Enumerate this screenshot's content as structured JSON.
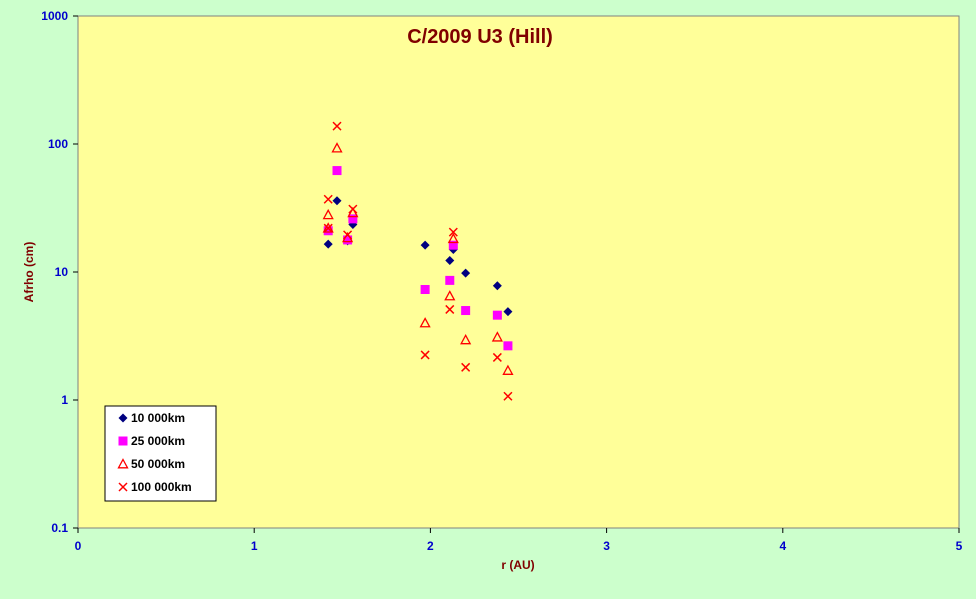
{
  "colors": {
    "page_background": "#ccffcc",
    "plot_background": "#ffff99",
    "title": "#800000",
    "axis_title": "#800000",
    "tick_labels": "#0000cc"
  },
  "chart_data": {
    "type": "scatter",
    "title": "C/2009 U3 (Hill)",
    "xlabel": "r (AU)",
    "ylabel": "Afrho (cm)",
    "xlim": [
      0,
      5
    ],
    "ylim": [
      0.1,
      1000
    ],
    "yscale": "log",
    "grid": false,
    "legend_position": "bottom-left",
    "x_ticks": [
      "0",
      "1",
      "2",
      "3",
      "4",
      "5"
    ],
    "y_ticks": [
      "0.1",
      "1",
      "10",
      "100",
      "1000"
    ],
    "series": [
      {
        "name": "10 000km",
        "marker": "diamond",
        "color": "#000080",
        "points": [
          [
            1.42,
            16.5
          ],
          [
            1.47,
            36
          ],
          [
            1.53,
            17.5
          ],
          [
            1.56,
            23.5
          ],
          [
            1.97,
            16.2
          ],
          [
            2.11,
            12.3
          ],
          [
            2.13,
            15
          ],
          [
            2.2,
            9.8
          ],
          [
            2.38,
            7.8
          ],
          [
            2.44,
            4.9
          ]
        ]
      },
      {
        "name": "25 000km",
        "marker": "square",
        "color": "#ff00ff",
        "points": [
          [
            1.42,
            21
          ],
          [
            1.47,
            62
          ],
          [
            1.53,
            17.8
          ],
          [
            1.56,
            26
          ],
          [
            1.97,
            7.3
          ],
          [
            2.11,
            8.6
          ],
          [
            2.13,
            16.2
          ],
          [
            2.2,
            5.0
          ],
          [
            2.38,
            4.6
          ],
          [
            2.44,
            2.65
          ]
        ]
      },
      {
        "name": "50 000km",
        "marker": "triangle",
        "color": "#ff0000",
        "points": [
          [
            1.42,
            28
          ],
          [
            1.42,
            22
          ],
          [
            1.47,
            93
          ],
          [
            1.53,
            18.5
          ],
          [
            1.56,
            29
          ],
          [
            1.97,
            4.0
          ],
          [
            2.11,
            6.5
          ],
          [
            2.13,
            18.2
          ],
          [
            2.2,
            2.95
          ],
          [
            2.38,
            3.1
          ],
          [
            2.44,
            1.7
          ]
        ]
      },
      {
        "name": "100 000km",
        "marker": "x",
        "color": "#ff0000",
        "points": [
          [
            1.42,
            37
          ],
          [
            1.42,
            22
          ],
          [
            1.47,
            138
          ],
          [
            1.53,
            19.5
          ],
          [
            1.56,
            31
          ],
          [
            1.97,
            2.25
          ],
          [
            2.11,
            5.1
          ],
          [
            2.13,
            20.5
          ],
          [
            2.2,
            1.8
          ],
          [
            2.38,
            2.15
          ],
          [
            2.44,
            1.07
          ]
        ]
      }
    ]
  }
}
